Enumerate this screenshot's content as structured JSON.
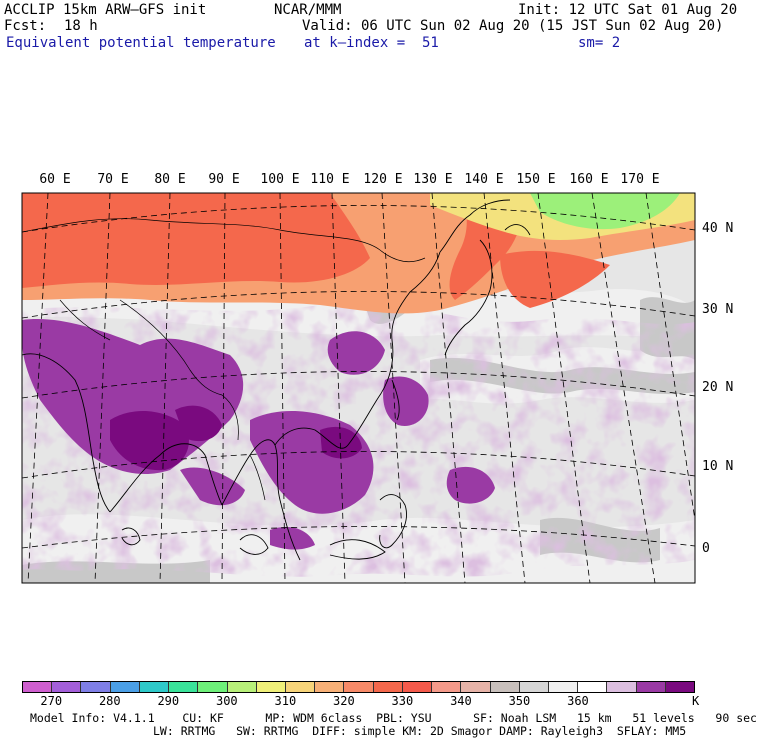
{
  "header": {
    "model": "ACCLIP 15km ARW–GFS init",
    "org": "NCAR/MMM",
    "init": "Init: 12 UTC Sat 01 Aug 20",
    "fcst_label": "Fcst:",
    "fcst_value": "18 h",
    "valid": "Valid: 06 UTC Sun 02 Aug 20 (15 JST Sun 02 Aug 20)",
    "field": "Equivalent potential temperature",
    "level": "at k–index =  51",
    "smoothing": "sm= 2"
  },
  "map": {
    "lon_labels": [
      "60 E",
      "70 E",
      "80 E",
      "90 E",
      "100 E",
      "110 E",
      "120 E",
      "130 E",
      "140 E",
      "150 E",
      "160 E",
      "170 E"
    ],
    "lat_labels": [
      "40 N",
      "30 N",
      "20 N",
      "10 N",
      "0"
    ],
    "colors": {
      "background": "#e6e6e6",
      "light_gray": "#f0f0f0",
      "mid_gray": "#c8c8c8",
      "light_purple": "#dcbfe0",
      "purple": "#9a3aa4",
      "dark_purple": "#7a0a7f",
      "orange": "#f7a071",
      "red_orange": "#f4684c",
      "yellow": "#f3e27e",
      "green": "#9cf07a"
    }
  },
  "colorbar": {
    "colors": [
      "#cf5fcf",
      "#a35fd9",
      "#7f7fe6",
      "#4b9fe6",
      "#2ec9c9",
      "#3ae39a",
      "#6ef07a",
      "#b8f07a",
      "#f0f07a",
      "#f7d47a",
      "#f7b077",
      "#f78a68",
      "#f4684c",
      "#f45a4b",
      "#f49a8a",
      "#e6b3a8",
      "#c8c0bc",
      "#d6d6d6",
      "#f0f0f0",
      "#ffffff",
      "#dcbfe0",
      "#9a3aa4",
      "#7a0a7f"
    ],
    "tick_labels": [
      "270",
      "280",
      "290",
      "300",
      "310",
      "320",
      "330",
      "340",
      "350",
      "360"
    ],
    "unit": "K"
  },
  "footer": {
    "line1": "Model Info: V4.1.1    CU: KF      MP: WDM 6class  PBL: YSU      SF: Noah LSM   15 km   51 levels   90 sec",
    "line2": "LW: RRTMG   SW: RRTMG  DIFF: simple KM: 2D Smagor DAMP: Rayleigh3  SFLAY: MM5"
  }
}
